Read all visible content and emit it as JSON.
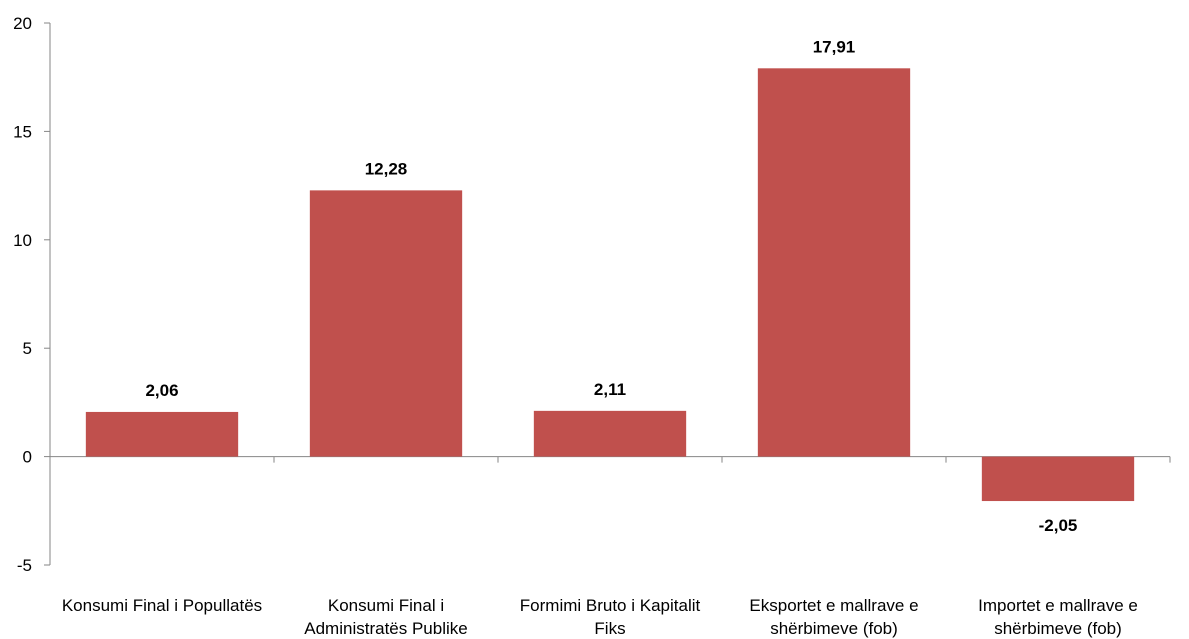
{
  "chart_data": {
    "type": "bar",
    "categories": [
      "Konsumi Final i Popullatës",
      "Konsumi Final i Administratës Publike",
      "Formimi Bruto i Kapitalit Fiks",
      "Eksportet e mallrave e shërbimeve (fob)",
      "Importet e mallrave e shërbimeve (fob)"
    ],
    "category_label_lines": [
      [
        "Konsumi Final i Popullatës"
      ],
      [
        "Konsumi Final i",
        "Administratës Publike"
      ],
      [
        "Formimi Bruto i Kapitalit",
        "Fiks"
      ],
      [
        "Eksportet e mallrave e",
        "shërbimeve (fob)"
      ],
      [
        "Importet e mallrave e",
        "shërbimeve (fob)"
      ]
    ],
    "values": [
      2.06,
      12.28,
      2.11,
      17.91,
      -2.05
    ],
    "data_labels": [
      "2,06",
      "12,28",
      "2,11",
      "17,91",
      "-2,05"
    ],
    "title": "",
    "xlabel": "",
    "ylabel": "",
    "ylim": [
      -5,
      20
    ],
    "yticks": [
      -5,
      0,
      5,
      10,
      15,
      20
    ],
    "ytick_labels": [
      "-5",
      "0",
      "5",
      "10",
      "15",
      "20"
    ],
    "grid": false,
    "legend": "none",
    "bar_color": "#c0504d"
  }
}
